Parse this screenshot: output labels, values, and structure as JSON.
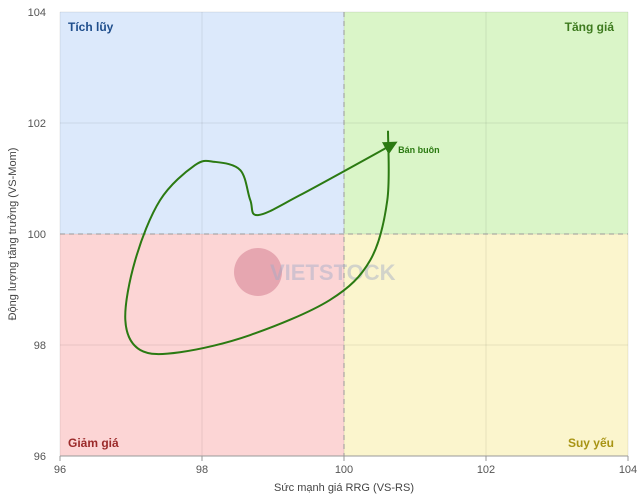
{
  "chart_data": {
    "type": "line",
    "x_label": "Sức mạnh giá RRG (VS-RS)",
    "y_label": "Động lượng tăng trưởng (VS-Mom)",
    "xlim": [
      96,
      104
    ],
    "ylim": [
      96,
      104
    ],
    "xticks": [
      96,
      98,
      100,
      102,
      104
    ],
    "yticks": [
      96,
      98,
      100,
      102,
      104
    ],
    "center": [
      100,
      100
    ],
    "quadrants": [
      {
        "label": "Tích lũy",
        "color": "#dce9fb",
        "text_color": "#1f4e8c"
      },
      {
        "label": "Tăng giá",
        "color": "#daf5c8",
        "text_color": "#3d7a1e"
      },
      {
        "label": "Giảm giá",
        "color": "#fcd5d5",
        "text_color": "#9b2a2a"
      },
      {
        "label": "Suy yếu",
        "color": "#fbf5cd",
        "text_color": "#a89414"
      }
    ],
    "watermark": "VIETSTOCK",
    "series": [
      {
        "name": "Bán buôn",
        "color": "#2b7a12",
        "x": [
          100.62,
          100.61,
          100.37,
          99.8,
          98.68,
          97.69,
          97.13,
          96.92,
          97.06,
          97.41,
          97.9,
          98.18,
          98.54,
          98.68,
          98.79,
          99.38,
          100.72
        ],
        "y": [
          101.86,
          100.61,
          99.53,
          98.81,
          98.18,
          97.87,
          97.91,
          98.45,
          99.53,
          100.61,
          101.24,
          101.3,
          101.15,
          100.61,
          100.34,
          100.7,
          101.64
        ]
      }
    ]
  }
}
